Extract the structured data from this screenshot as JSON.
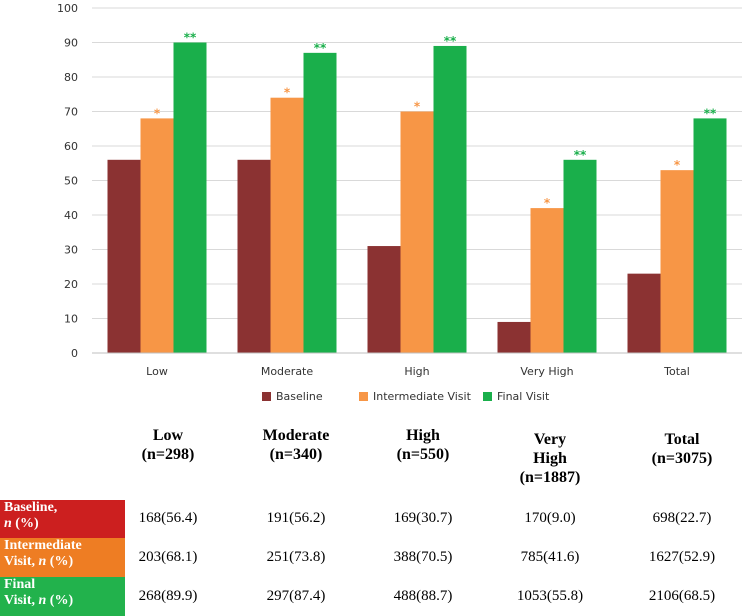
{
  "chart_data": {
    "type": "bar",
    "categories": [
      "Low",
      "Moderate",
      "High",
      "Very High",
      "Total"
    ],
    "series": [
      {
        "name": "Baseline",
        "color": "#8B3232",
        "values": [
          56,
          56,
          31,
          9,
          23
        ],
        "marks": [
          "",
          "",
          "",
          "",
          ""
        ]
      },
      {
        "name": "Intermediate Visit",
        "color": "#F79646",
        "values": [
          68,
          74,
          70,
          42,
          53
        ],
        "marks": [
          "*",
          "*",
          "*",
          "*",
          "*"
        ]
      },
      {
        "name": "Final Visit",
        "color": "#1AAF4B",
        "values": [
          90,
          87,
          89,
          56,
          68
        ],
        "marks": [
          "**",
          "**",
          "**",
          "**",
          "**"
        ]
      }
    ],
    "yticks": [
      0,
      10,
      20,
      30,
      40,
      50,
      60,
      70,
      80,
      90,
      100
    ],
    "ylim": [
      0,
      100
    ],
    "grid": true,
    "legend_position": "bottom"
  },
  "table": {
    "columns": [
      {
        "line1": "Low",
        "line2": "(n=298)",
        "line3": ""
      },
      {
        "line1": "Moderate",
        "line2": "(n=340)",
        "line3": ""
      },
      {
        "line1": "High",
        "line2": "(n=550)",
        "line3": ""
      },
      {
        "line1": "Very",
        "line2": "High",
        "line3": "(n=1887)"
      },
      {
        "line1": "Total",
        "line2": "(n=3075)",
        "line3": ""
      }
    ],
    "rows": [
      {
        "label_main": "Baseline,",
        "label_n": "n",
        "label_pct": " (%)",
        "color": "#CC1F1F",
        "values": [
          "168(56.4)",
          "191(56.2)",
          "169(30.7)",
          "170(9.0)",
          "698(22.7)"
        ]
      },
      {
        "label_main": "Intermediate",
        "label_main2": "Visit, ",
        "label_n": "n",
        "label_pct": " (%)",
        "color": "#EE7D23",
        "values": [
          "203(68.1)",
          "251(73.8)",
          "388(70.5)",
          "785(41.6)",
          "1627(52.9)"
        ]
      },
      {
        "label_main": "Final",
        "label_main2": "Visit, ",
        "label_n": "n",
        "label_pct": " (%)",
        "color": "#22B24C",
        "values": [
          "268(89.9)",
          "297(87.4)",
          "488(88.7)",
          "1053(55.8)",
          "2106(68.5)"
        ]
      }
    ]
  }
}
